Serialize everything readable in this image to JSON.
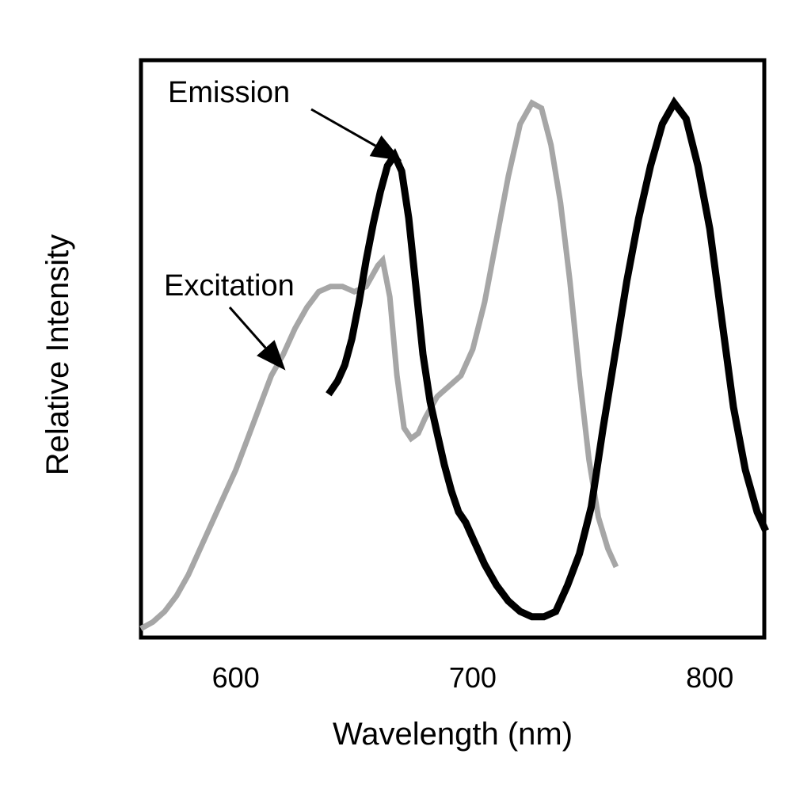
{
  "chart_data": {
    "type": "line",
    "xlabel": "Wavelength (nm)",
    "ylabel": "Relative Intensity",
    "xlim": [
      560,
      823
    ],
    "ylim": [
      0,
      1.05
    ],
    "xticks": [
      "600",
      "700",
      "800"
    ],
    "xtick_values": [
      600,
      700,
      800
    ],
    "grid": false,
    "legend": "none",
    "series": [
      {
        "color": "#a6a6a6",
        "x": [
          561,
          565,
          570,
          575,
          580,
          585,
          590,
          595,
          600,
          605,
          610,
          615,
          620,
          625,
          630,
          635,
          640,
          645,
          650,
          655,
          660,
          662,
          665,
          668,
          671,
          674,
          677,
          680,
          685,
          690,
          695,
          700,
          705,
          710,
          715,
          720,
          725,
          729,
          733,
          737,
          741,
          745,
          749,
          753,
          757,
          760
        ],
        "values": [
          0.0,
          0.01,
          0.03,
          0.06,
          0.1,
          0.15,
          0.2,
          0.25,
          0.3,
          0.36,
          0.42,
          0.48,
          0.52,
          0.57,
          0.61,
          0.64,
          0.65,
          0.65,
          0.64,
          0.65,
          0.69,
          0.7,
          0.63,
          0.48,
          0.38,
          0.36,
          0.37,
          0.4,
          0.44,
          0.46,
          0.48,
          0.53,
          0.62,
          0.74,
          0.86,
          0.96,
          1.0,
          0.99,
          0.92,
          0.81,
          0.66,
          0.48,
          0.32,
          0.21,
          0.15,
          0.12
        ],
        "annotation": "Excitation"
      },
      {
        "color": "#000000",
        "x": [
          640,
          643,
          646,
          649,
          652,
          655,
          658,
          661,
          664,
          667,
          670,
          673,
          676,
          679,
          682,
          685,
          688,
          691,
          694,
          697,
          700,
          705,
          710,
          715,
          720,
          725,
          730,
          735,
          740,
          745,
          750,
          755,
          760,
          765,
          770,
          775,
          780,
          785,
          790,
          795,
          800,
          805,
          810,
          815,
          820,
          823
        ],
        "values": [
          0.45,
          0.47,
          0.5,
          0.55,
          0.62,
          0.7,
          0.77,
          0.83,
          0.88,
          0.9,
          0.87,
          0.78,
          0.65,
          0.52,
          0.43,
          0.37,
          0.31,
          0.26,
          0.22,
          0.2,
          0.17,
          0.12,
          0.08,
          0.05,
          0.03,
          0.02,
          0.02,
          0.03,
          0.08,
          0.14,
          0.23,
          0.38,
          0.52,
          0.66,
          0.78,
          0.88,
          0.96,
          1.0,
          0.97,
          0.88,
          0.76,
          0.59,
          0.42,
          0.3,
          0.22,
          0.19
        ],
        "annotation": "Emission"
      }
    ],
    "annotations": [
      {
        "text": "Emission",
        "target_x": 670,
        "target_y": 0.89,
        "placement": "upper-left"
      },
      {
        "text": "Excitation",
        "target_x": 621,
        "target_y": 0.49,
        "placement": "left"
      }
    ]
  }
}
